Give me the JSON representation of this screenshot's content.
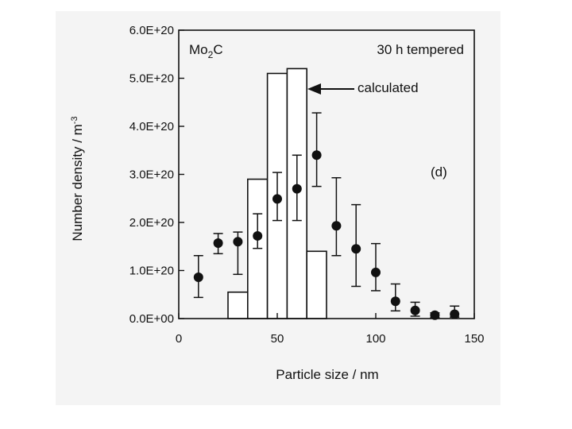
{
  "chart_data": {
    "type": "bar",
    "series_types": [
      "bar",
      "scatter"
    ],
    "xlabel": "Particle size /  nm",
    "ylabel": "Number density /  m",
    "ylabel_exponent": "-3",
    "xlim": [
      0,
      150
    ],
    "ylim": [
      0,
      6e+20
    ],
    "xticks": [
      0,
      50,
      100,
      150
    ],
    "xtick_labels": [
      "0",
      "50",
      "100",
      "150"
    ],
    "yticks": [
      0,
      1e+20,
      2e+20,
      3e+20,
      4e+20,
      5e+20,
      6e+20
    ],
    "ytick_labels": [
      "0.0E+00",
      "1.0E+20",
      "2.0E+20",
      "3.0E+20",
      "4.0E+20",
      "5.0E+20",
      "6.0E+20"
    ],
    "grid": false,
    "annotations": {
      "material_prefix": "Mo",
      "material_subscript": "2",
      "material_suffix": "C",
      "condition": "30 h tempered",
      "arrow_label": "calculated",
      "panel": "(d)"
    },
    "bars": {
      "name": "calculated",
      "bin_edges": [
        25,
        35,
        45,
        55,
        65,
        75
      ],
      "values": [
        5.5e+19,
        2.9e+20,
        5.1e+20,
        5.2e+20,
        1.4e+20
      ]
    },
    "points": {
      "x": [
        10,
        20,
        30,
        40,
        50,
        60,
        70,
        80,
        90,
        100,
        110,
        120,
        130,
        140
      ],
      "y": [
        8.6e+19,
        1.57e+20,
        1.6e+20,
        1.72e+20,
        2.49e+20,
        2.7e+20,
        3.4e+20,
        1.93e+20,
        1.45e+20,
        9.6e+19,
        3.6e+19,
        1.7e+19,
        7e+18,
        9e+18
      ],
      "yerr_low": [
        4.2e+19,
        2.2e+19,
        6.8e+19,
        2.6e+19,
        4.5e+19,
        6.6e+19,
        6.5e+19,
        6.2e+19,
        7.8e+19,
        3.8e+19,
        2e+19,
        1.2e+19,
        5e+18,
        6e+18
      ],
      "yerr_high": [
        4.5e+19,
        2e+19,
        2e+19,
        4.6e+19,
        5.5e+19,
        7e+19,
        8.8e+19,
        1e+20,
        9.2e+19,
        6e+19,
        3.6e+19,
        1.7e+19,
        5e+18,
        1.7e+19
      ]
    }
  }
}
